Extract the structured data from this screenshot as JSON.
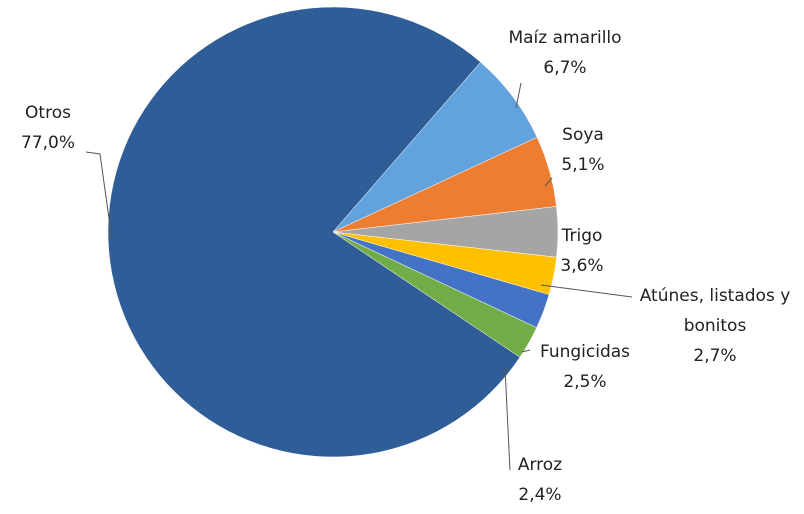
{
  "chart_data": {
    "type": "pie",
    "categories": [
      "Otros",
      "Maíz amarillo",
      "Soya",
      "Trigo",
      "Atúnes, listados y bonitos",
      "Fungicidas",
      "Arroz"
    ],
    "values": [
      77.0,
      6.7,
      5.1,
      3.6,
      2.7,
      2.5,
      2.4
    ],
    "value_labels": [
      "77,0%",
      "6,7%",
      "5,1%",
      "3,6%",
      "2,7%",
      "2,5%",
      "2,4%"
    ],
    "colors": [
      "#2f5d98",
      "#62a2dd",
      "#ed7d31",
      "#a5a5a5",
      "#ffc000",
      "#4472c4",
      "#70ad47"
    ]
  }
}
